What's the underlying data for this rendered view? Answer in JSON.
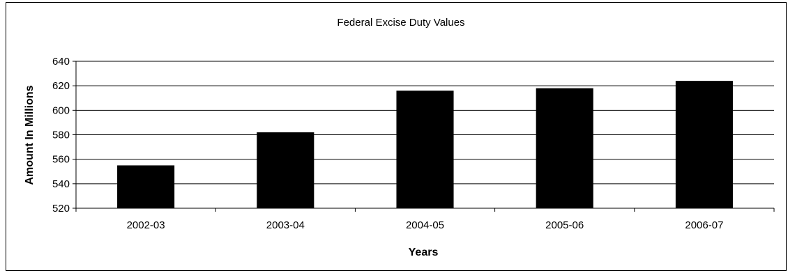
{
  "chart_data": {
    "type": "bar",
    "title": "Federal Excise Duty Values",
    "xlabel": "Years",
    "ylabel": "Amount In Millions",
    "categories": [
      "2002-03",
      "2003-04",
      "2004-05",
      "2005-06",
      "2006-07"
    ],
    "values": [
      555,
      582,
      616,
      618,
      624
    ],
    "ylim": [
      520,
      640
    ],
    "yticks": [
      520,
      540,
      560,
      580,
      600,
      620,
      640
    ],
    "grid": "horizontal",
    "bar_color": "#000000",
    "legend": "none"
  }
}
